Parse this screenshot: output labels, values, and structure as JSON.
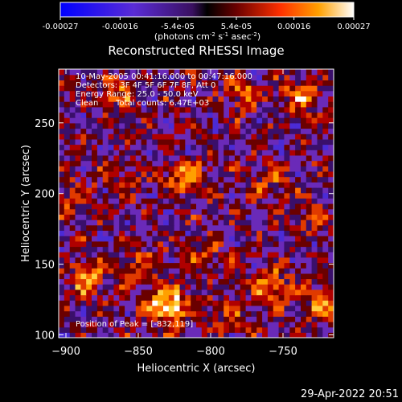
{
  "colorbar": {
    "tick_labels": [
      "-0.00027",
      "-0.00016",
      "-5.4e-05",
      "5.4e-05",
      "0.00016",
      "0.00027"
    ],
    "tick_values": [
      -0.00027,
      -0.00016,
      -5.4e-05,
      5.4e-05,
      0.00016,
      0.00027
    ],
    "range": [
      -0.00027,
      0.00027
    ],
    "units_main": "(photons cm",
    "units_sup1": "-2",
    "units_mid1": " s",
    "units_sup2": "-1",
    "units_mid2": " asec",
    "units_sup3": "-2",
    "units_end": ")",
    "colors": {
      "negative": "#1a1aff",
      "mid_negative": "#7a33cc",
      "zero": "#000000",
      "mid_positive": "#e03a00",
      "high_positive": "#ffc000",
      "peak": "#ffffff"
    }
  },
  "annotations": {
    "time_range": "10-May-2005 00:41:16.000 to 00:47:16.000",
    "detectors": "Detectors: 3F 4F 5F 6F 7F 8F, Att 0",
    "energy": "Energy Range: 25.0 - 50.0 keV",
    "clean": "Clean",
    "total_counts": "Total counts: 6.47E+03",
    "peak": "Position of Peak = [-832,119]"
  },
  "footer": {
    "timestamp": "29-Apr-2022 20:51"
  },
  "chart_data": {
    "type": "heatmap",
    "title": "Reconstructed RHESSI Image",
    "xlabel": "Heliocentric X (arcsec)",
    "ylabel": "Heliocentric Y (arcsec)",
    "xlim": [
      -905,
      -715
    ],
    "ylim": [
      98,
      288
    ],
    "x_ticks": [
      -900,
      -850,
      -800,
      -750
    ],
    "x_tick_labels": [
      "−900",
      "−850",
      "−800",
      "−750"
    ],
    "y_ticks": [
      100,
      150,
      200,
      250
    ],
    "y_tick_labels": [
      "100",
      "150",
      "200",
      "250"
    ],
    "grid": false,
    "peak_position": [
      -832,
      119
    ],
    "hotspots": [
      {
        "x": -832,
        "y": 119,
        "v": 0.00027
      },
      {
        "x": -818,
        "y": 210,
        "v": 0.00016
      },
      {
        "x": -888,
        "y": 138,
        "v": 0.00016
      },
      {
        "x": -740,
        "y": 268,
        "v": 0.00016
      },
      {
        "x": -760,
        "y": 132,
        "v": 0.00016
      },
      {
        "x": -725,
        "y": 122,
        "v": 0.00016
      },
      {
        "x": -868,
        "y": 270,
        "v": 0.00012
      },
      {
        "x": -780,
        "y": 270,
        "v": 0.00012
      },
      {
        "x": -850,
        "y": 150,
        "v": 0.0001
      },
      {
        "x": -900,
        "y": 195,
        "v": 0.0001
      },
      {
        "x": -790,
        "y": 110,
        "v": 0.0001
      },
      {
        "x": -730,
        "y": 180,
        "v": 0.0001
      },
      {
        "x": -758,
        "y": 205,
        "v": 9e-05
      },
      {
        "x": -865,
        "y": 208,
        "v": 8e-05
      },
      {
        "x": -808,
        "y": 155,
        "v": 8e-05
      }
    ]
  }
}
